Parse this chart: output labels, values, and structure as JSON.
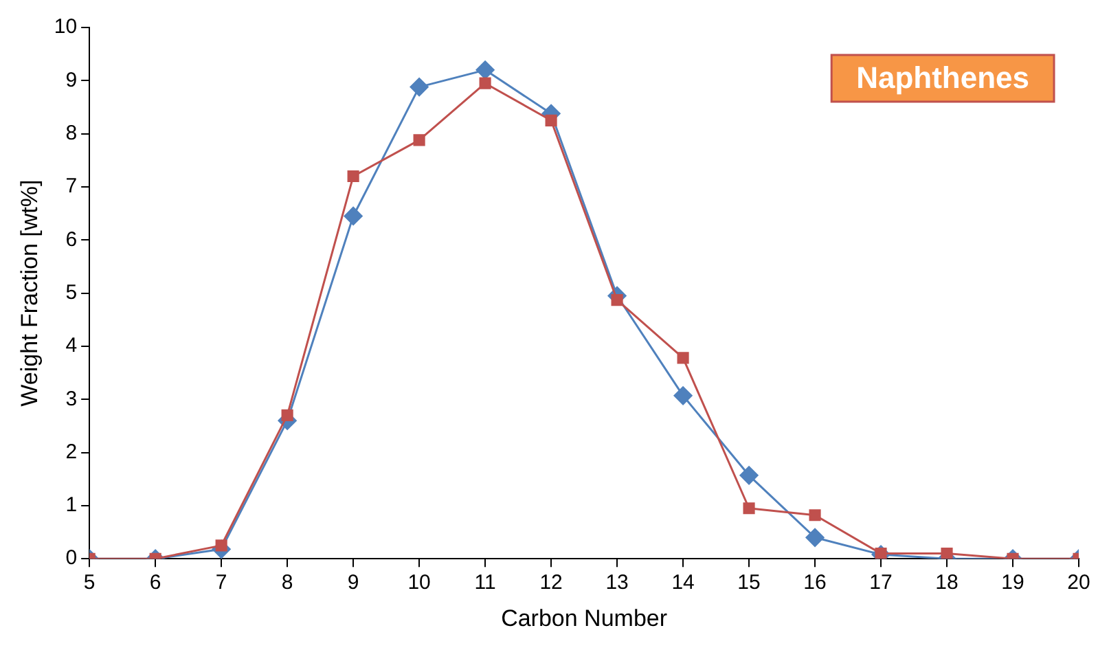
{
  "chart_data": {
    "type": "line",
    "xlabel": "Carbon Number",
    "ylabel": "Weight Fraction [wt%]",
    "x": [
      5,
      6,
      7,
      8,
      9,
      10,
      11,
      12,
      13,
      14,
      15,
      16,
      17,
      18,
      19,
      20
    ],
    "series": [
      {
        "color": "#4f81bd",
        "marker": "diamond",
        "values": [
          0,
          0,
          0.18,
          2.6,
          6.45,
          8.88,
          9.2,
          8.38,
          4.95,
          3.07,
          1.57,
          0.4,
          0.08,
          0,
          0,
          0
        ]
      },
      {
        "color": "#c0504d",
        "marker": "square",
        "values": [
          0,
          0,
          0.25,
          2.7,
          7.2,
          7.88,
          8.95,
          8.25,
          4.87,
          3.78,
          0.95,
          0.82,
          0.1,
          0.1,
          0,
          0
        ]
      }
    ],
    "xlim": [
      5,
      20
    ],
    "xticks": [
      5,
      6,
      7,
      8,
      9,
      10,
      11,
      12,
      13,
      14,
      15,
      16,
      17,
      18,
      19,
      20
    ],
    "ylim": [
      0,
      10
    ],
    "yticks": [
      0,
      1,
      2,
      3,
      4,
      5,
      6,
      7,
      8,
      9,
      10
    ],
    "grid": false,
    "legend": false,
    "annotations": [
      "Naphthenes"
    ]
  }
}
